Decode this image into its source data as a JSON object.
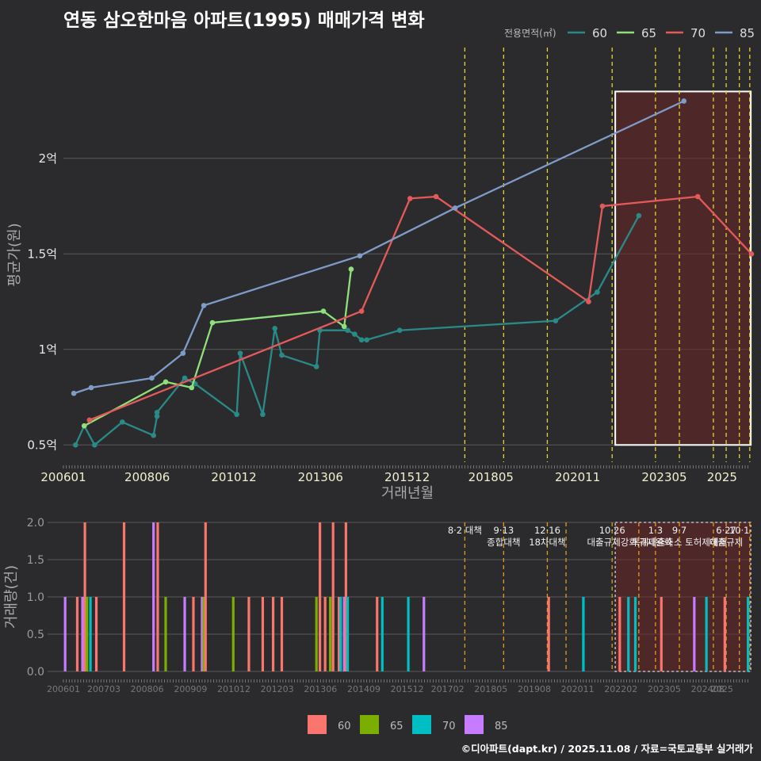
{
  "title": "연동 삼오한마음 아파트(1995) 매매가격 변화",
  "credit": "©디아파트(dapt.kr) / 2025.11.08 / 자료=국토교통부 실거래가",
  "colors": {
    "60": "#2a8a88",
    "65": "#8fe07a",
    "70": "#e45a5a",
    "85": "#7f9cc8",
    "bar60": "#f8766d",
    "bar65": "#7cae00",
    "bar70": "#00bfc4",
    "bar85": "#c77cff",
    "policy": "#e8d42a",
    "policyBar": "#e39a1a"
  },
  "chart_data": [
    {
      "type": "line",
      "title": "연동 삼오한마음 아파트(1995) 매매가격 변화",
      "xlabel": "거래년월",
      "ylabel": "평균가(원)",
      "legend_title": "전용면적(㎡)",
      "xticks": [
        "200601",
        "200806",
        "201012",
        "201306",
        "201512",
        "201805",
        "202011",
        "202305",
        "2025"
      ],
      "yticks": [
        {
          "v": 0.5,
          "label": "0.5억"
        },
        {
          "v": 1.0,
          "label": "1억"
        },
        {
          "v": 1.5,
          "label": "1.5억"
        },
        {
          "v": 2.0,
          "label": "2억"
        }
      ],
      "xlim": [
        2006.0,
        2025.85
      ],
      "ylim": [
        0.41,
        2.58
      ],
      "highlight": {
        "x0": 2021.92,
        "x1": 2025.83,
        "y0": 0.5,
        "y1": 2.35
      },
      "policy_x": [
        2017.58,
        2018.7,
        2019.96,
        2021.83,
        2023.08,
        2023.77,
        2024.75,
        2025.12,
        2025.5,
        2025.8
      ],
      "series": [
        {
          "name": "60",
          "x": [
            2006.35,
            2006.6,
            2006.9,
            2007.7,
            2008.6,
            2008.7,
            2008.7,
            2009.5,
            2009.8,
            2011.0,
            2011.1,
            2011.75,
            2012.1,
            2012.3,
            2013.3,
            2013.4,
            2014.2,
            2014.4,
            2014.6,
            2014.75,
            2015.7,
            2020.2,
            2021.4,
            2022.6
          ],
          "y": [
            0.5,
            0.6,
            0.5,
            0.62,
            0.55,
            0.65,
            0.67,
            0.85,
            0.82,
            0.66,
            0.98,
            0.66,
            1.11,
            0.97,
            0.91,
            1.1,
            1.1,
            1.08,
            1.05,
            1.05,
            1.1,
            1.15,
            1.3,
            1.7
          ]
        },
        {
          "name": "65",
          "x": [
            2006.6,
            2008.95,
            2009.7,
            2010.3,
            2013.5,
            2014.1,
            2014.3
          ],
          "y": [
            0.6,
            0.83,
            0.8,
            1.14,
            1.2,
            1.12,
            1.42
          ]
        },
        {
          "name": "70",
          "x": [
            2006.75,
            2014.6,
            2016.0,
            2016.75,
            2021.15,
            2021.55,
            2024.3,
            2025.85
          ],
          "y": [
            0.63,
            1.2,
            1.79,
            1.8,
            1.25,
            1.75,
            1.8,
            1.5
          ]
        },
        {
          "name": "85",
          "x": [
            2006.3,
            2006.8,
            2008.55,
            2009.45,
            2010.05,
            2014.55,
            2017.3,
            2023.9
          ],
          "y": [
            0.77,
            0.8,
            0.85,
            0.98,
            1.23,
            1.49,
            1.74,
            2.3
          ]
        }
      ]
    },
    {
      "type": "bar",
      "ylabel": "거래량(건)",
      "xticks": [
        "200601",
        "200703",
        "200806",
        "200909",
        "201012",
        "201203",
        "201306",
        "201409",
        "201512",
        "201702",
        "201805",
        "201908",
        "202011",
        "202202",
        "202305",
        "202408",
        "2025"
      ],
      "yticks": [
        0,
        0.5,
        1.0,
        1.5,
        2.0
      ],
      "yticks_labels": [
        "0.0",
        "0.5",
        "1.0",
        "1.5",
        "2.0"
      ],
      "xlim": [
        2006.0,
        2025.85
      ],
      "ylim": [
        0,
        2.0
      ],
      "highlight": {
        "x0": 2021.92,
        "x1": 2025.83
      },
      "policy_lines": [
        {
          "x": 2017.58,
          "label": "8·2 대책"
        },
        {
          "x": 2018.7,
          "label": "9·13\n종합대책"
        },
        {
          "x": 2019.96,
          "label": "12·16\n18차대책"
        },
        {
          "x": 2020.5,
          "label": ""
        },
        {
          "x": 2021.83,
          "label": "10·26\n대출규제강화"
        },
        {
          "x": 2022.6,
          "label": ""
        },
        {
          "x": 2023.08,
          "label": "1·3\n규제완화"
        },
        {
          "x": 2023.77,
          "label": "9·7\n특례대출축소 토허제해제"
        },
        {
          "x": 2024.75,
          "label": ""
        },
        {
          "x": 2025.12,
          "label": "6·27\n대출규제"
        },
        {
          "x": 2025.5,
          "label": "10·1\n"
        },
        {
          "x": 2025.8,
          "label": ""
        }
      ],
      "bars": [
        {
          "x": 2006.05,
          "s": "85",
          "v": 1
        },
        {
          "x": 2006.4,
          "s": "60",
          "v": 1
        },
        {
          "x": 2006.55,
          "s": "85",
          "v": 1
        },
        {
          "x": 2006.62,
          "s": "60",
          "v": 2
        },
        {
          "x": 2006.68,
          "s": "65",
          "v": 1
        },
        {
          "x": 2006.78,
          "s": "70",
          "v": 1
        },
        {
          "x": 2006.95,
          "s": "60",
          "v": 1
        },
        {
          "x": 2007.75,
          "s": "60",
          "v": 2
        },
        {
          "x": 2008.6,
          "s": "85",
          "v": 2
        },
        {
          "x": 2008.72,
          "s": "60",
          "v": 2
        },
        {
          "x": 2008.95,
          "s": "65",
          "v": 1
        },
        {
          "x": 2009.5,
          "s": "85",
          "v": 1
        },
        {
          "x": 2009.75,
          "s": "60",
          "v": 1
        },
        {
          "x": 2010.0,
          "s": "85",
          "v": 1
        },
        {
          "x": 2010.05,
          "s": "65",
          "v": 1
        },
        {
          "x": 2010.1,
          "s": "60",
          "v": 2
        },
        {
          "x": 2010.9,
          "s": "65",
          "v": 1
        },
        {
          "x": 2011.35,
          "s": "60",
          "v": 1
        },
        {
          "x": 2011.75,
          "s": "60",
          "v": 1
        },
        {
          "x": 2012.05,
          "s": "60",
          "v": 1
        },
        {
          "x": 2012.3,
          "s": "60",
          "v": 1
        },
        {
          "x": 2013.3,
          "s": "65",
          "v": 1
        },
        {
          "x": 2013.4,
          "s": "60",
          "v": 2
        },
        {
          "x": 2013.55,
          "s": "60",
          "v": 1
        },
        {
          "x": 2013.7,
          "s": "65",
          "v": 1
        },
        {
          "x": 2013.78,
          "s": "60",
          "v": 2
        },
        {
          "x": 2013.95,
          "s": "60",
          "v": 1
        },
        {
          "x": 2014.0,
          "s": "70",
          "v": 1
        },
        {
          "x": 2014.1,
          "s": "85",
          "v": 1
        },
        {
          "x": 2014.15,
          "s": "60",
          "v": 2
        },
        {
          "x": 2014.2,
          "s": "70",
          "v": 1
        },
        {
          "x": 2015.05,
          "s": "60",
          "v": 1
        },
        {
          "x": 2015.2,
          "s": "70",
          "v": 1
        },
        {
          "x": 2015.95,
          "s": "70",
          "v": 1
        },
        {
          "x": 2016.4,
          "s": "85",
          "v": 1
        },
        {
          "x": 2020.0,
          "s": "60",
          "v": 1
        },
        {
          "x": 2021.0,
          "s": "70",
          "v": 1
        },
        {
          "x": 2022.05,
          "s": "60",
          "v": 1
        },
        {
          "x": 2022.3,
          "s": "70",
          "v": 1
        },
        {
          "x": 2022.5,
          "s": "70",
          "v": 1
        },
        {
          "x": 2023.25,
          "s": "60",
          "v": 1
        },
        {
          "x": 2024.2,
          "s": "85",
          "v": 1
        },
        {
          "x": 2024.55,
          "s": "70",
          "v": 1
        },
        {
          "x": 2025.08,
          "s": "60",
          "v": 1
        },
        {
          "x": 2025.75,
          "s": "70",
          "v": 1
        }
      ],
      "legend": [
        "60",
        "65",
        "70",
        "85"
      ]
    }
  ]
}
